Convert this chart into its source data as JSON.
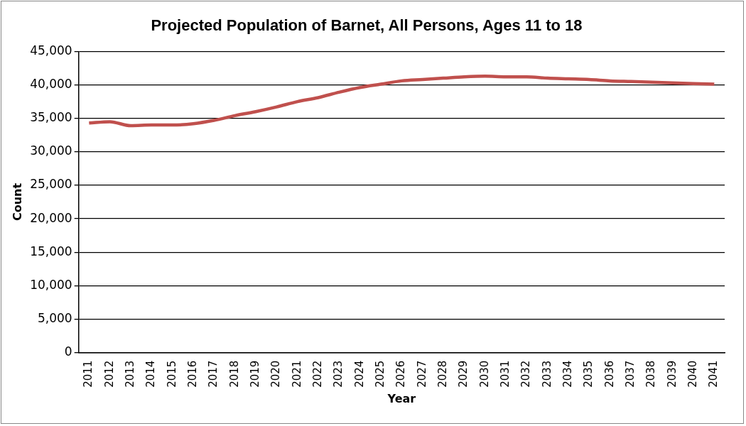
{
  "chart_data": {
    "type": "line",
    "title": "Projected Population of Barnet, All Persons, Ages 11 to 18",
    "xlabel": "Year",
    "ylabel": "Count",
    "categories": [
      "2011",
      "2012",
      "2013",
      "2014",
      "2015",
      "2016",
      "2017",
      "2018",
      "2019",
      "2020",
      "2021",
      "2022",
      "2023",
      "2024",
      "2025",
      "2026",
      "2027",
      "2028",
      "2029",
      "2030",
      "2031",
      "2032",
      "2033",
      "2034",
      "2035",
      "2036",
      "2037",
      "2038",
      "2039",
      "2040",
      "2041"
    ],
    "series": [
      {
        "color": "#c0504d",
        "values": [
          34300,
          34500,
          33900,
          34000,
          34000,
          34200,
          34700,
          35400,
          36000,
          36700,
          37500,
          38100,
          38900,
          39600,
          40100,
          40600,
          40800,
          41000,
          41200,
          41300,
          41200,
          41200,
          41000,
          40900,
          40800,
          40600,
          40500,
          40400,
          40300,
          40200,
          40100
        ]
      }
    ],
    "ylim": [
      0,
      45000
    ],
    "yticks": [
      0,
      {
        "value": 5000,
        "label": "5,000"
      },
      {
        "value": 10000,
        "label": "10,000"
      },
      {
        "value": 15000,
        "label": "15,000"
      },
      {
        "value": 20000,
        "label": "20,000"
      },
      {
        "value": 25000,
        "label": "25,000"
      },
      {
        "value": 30000,
        "label": "30,000"
      },
      {
        "value": 35000,
        "label": "35,000"
      },
      {
        "value": 40000,
        "label": "40,000"
      },
      {
        "value": 45000,
        "label": "45,000"
      }
    ],
    "grid": "y",
    "legend": false,
    "marker": "none",
    "line_style": "solid"
  }
}
